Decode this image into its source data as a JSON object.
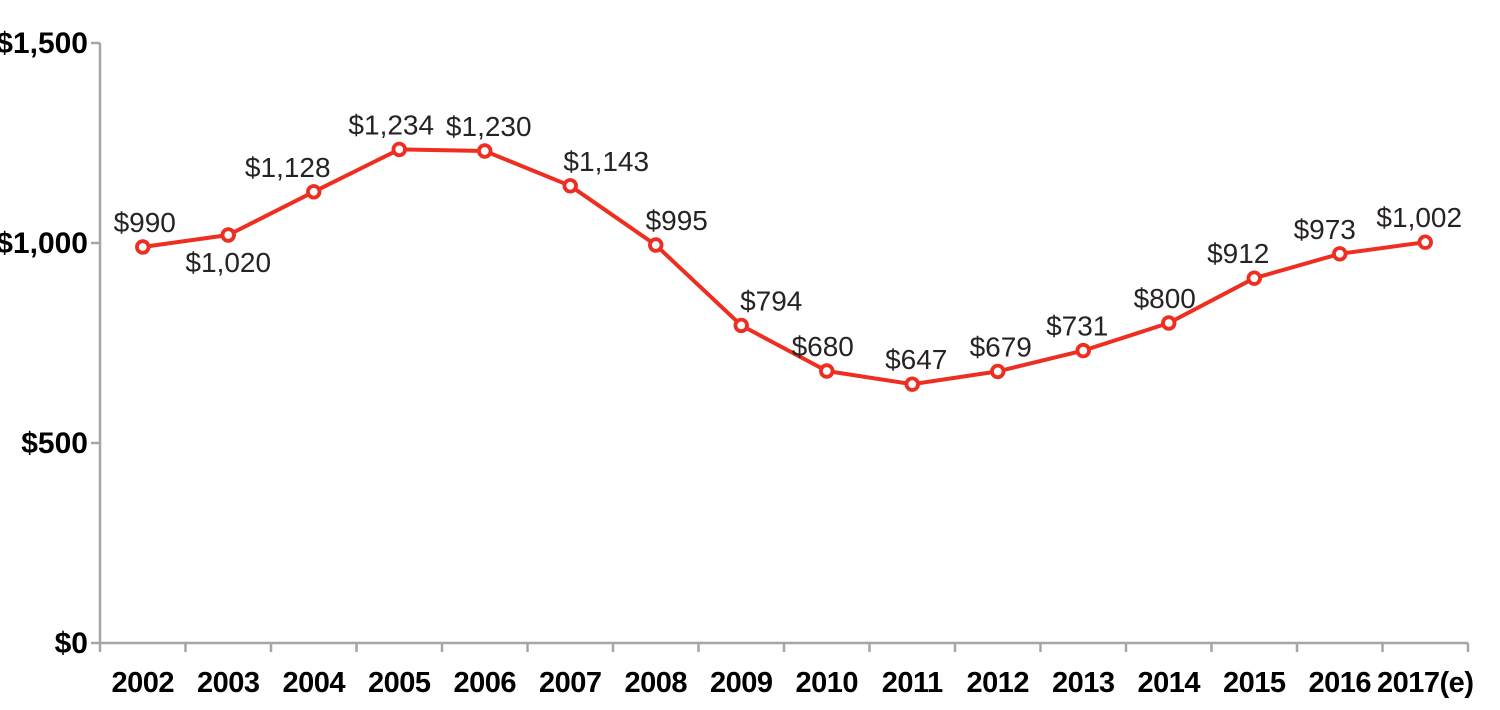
{
  "chart_data": {
    "type": "line",
    "title": "",
    "xlabel": "",
    "ylabel": "",
    "categories": [
      "2002",
      "2003",
      "2004",
      "2005",
      "2006",
      "2007",
      "2008",
      "2009",
      "2010",
      "2011",
      "2012",
      "2013",
      "2014",
      "2015",
      "2016",
      "2017(e)"
    ],
    "series": [
      {
        "name": "dollars",
        "values": [
          990,
          1020,
          1128,
          1234,
          1230,
          1143,
          995,
          794,
          680,
          647,
          679,
          731,
          800,
          912,
          973,
          1002
        ]
      }
    ],
    "point_labels": [
      "$990",
      "$1,020",
      "$1,128",
      "$1,234",
      "$1,230",
      "$1,143",
      "$995",
      "$794",
      "$680",
      "$647",
      "$679",
      "$731",
      "$800",
      "$912",
      "$973",
      "$1,002"
    ],
    "label_positions": [
      "above",
      "below",
      "above",
      "above",
      "above",
      "above",
      "above",
      "above",
      "above",
      "above",
      "above",
      "above",
      "above",
      "above",
      "above",
      "above"
    ],
    "label_dx": [
      2,
      0,
      -26,
      -8,
      4,
      36,
      21,
      30,
      -4,
      4,
      3,
      -6,
      -4,
      -16,
      -15,
      -6
    ],
    "y_tick_labels": [
      "$0",
      "$500",
      "$1,000",
      "$1,500"
    ],
    "y_tick_values": [
      0,
      500,
      1000,
      1500
    ],
    "ylim": [
      0,
      1500
    ],
    "grid": false,
    "legend": "none",
    "colors": {
      "line": "#ee2e20",
      "marker_fill": "#ffffff",
      "marker_stroke": "#ee2e20",
      "axis": "#a6a6a6",
      "axis_text": "#000000",
      "data_label_text": "#272324",
      "background": "#ffffff"
    }
  }
}
